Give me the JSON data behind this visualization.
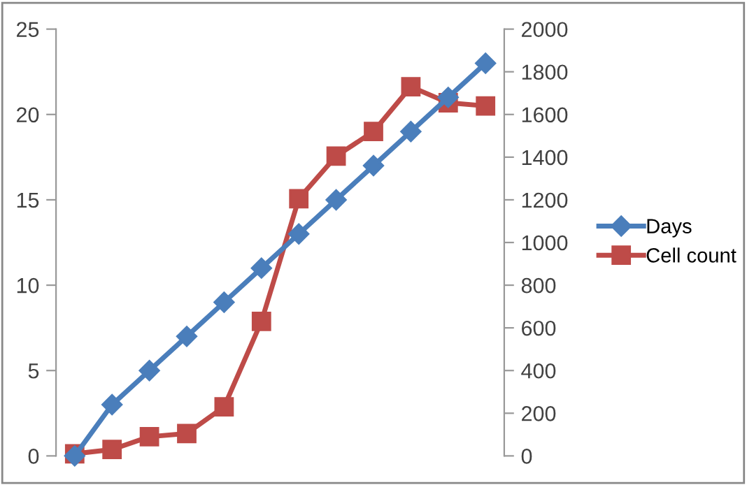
{
  "chart_data": {
    "type": "line",
    "categories": [
      null,
      null,
      null,
      null,
      null,
      null,
      null,
      null,
      null,
      null,
      null,
      null
    ],
    "series": [
      {
        "name": "Days",
        "color": "#4a7ebb",
        "marker": "diamond",
        "values": [
          0,
          3,
          5,
          7,
          9,
          11,
          13,
          15,
          17,
          19,
          21,
          23
        ]
      },
      {
        "name": "Cell count",
        "color": "#be4b48",
        "marker": "square",
        "axis": "y2",
        "values": [
          10,
          30,
          90,
          105,
          230,
          630,
          1205,
          1405,
          1520,
          1730,
          1655,
          1640
        ]
      }
    ],
    "ylim": [
      0,
      25
    ],
    "yticks": [
      0,
      5,
      10,
      15,
      20,
      25
    ],
    "y2lim": [
      0,
      2000
    ],
    "y2ticks": [
      0,
      200,
      400,
      600,
      800,
      1000,
      1200,
      1400,
      1600,
      1800,
      2000
    ],
    "grid": false,
    "legend": "right",
    "line_style": "solid"
  }
}
